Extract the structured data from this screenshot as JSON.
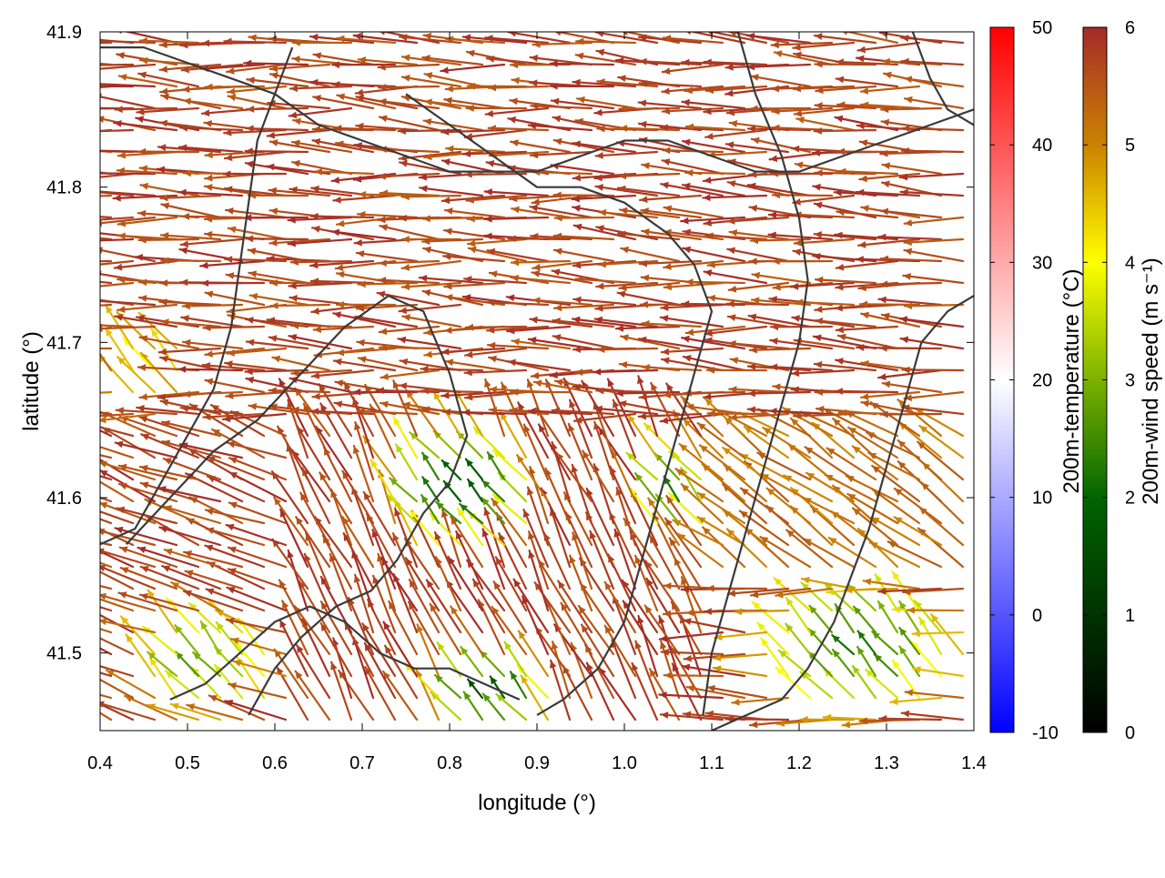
{
  "chart_data": {
    "type": "vector_field",
    "xlabel": "longitude (°)",
    "ylabel": "latitude (°)",
    "xlim": [
      0.4,
      1.4
    ],
    "ylim": [
      41.45,
      41.9
    ],
    "x_ticks": [
      "0.4",
      "0.5",
      "0.6",
      "0.7",
      "0.8",
      "0.9",
      "1.0",
      "1.1",
      "1.2",
      "1.3",
      "1.4"
    ],
    "y_ticks": [
      "41.5",
      "41.6",
      "41.7",
      "41.8",
      "41.9"
    ],
    "x_tick_values": [
      0.4,
      0.5,
      0.6,
      0.7,
      0.8,
      0.9,
      1.0,
      1.1,
      1.2,
      1.3,
      1.4
    ],
    "y_tick_values": [
      41.5,
      41.6,
      41.7,
      41.8,
      41.9
    ],
    "temperature_colorbar": {
      "label": "200m-temperature (°C)",
      "range": [
        -10,
        50
      ],
      "ticks": [
        "-10",
        "0",
        "10",
        "20",
        "30",
        "40",
        "50"
      ],
      "tick_values": [
        -10,
        0,
        10,
        20,
        30,
        40,
        50
      ],
      "colors": [
        "#0000ff",
        "#ffffff",
        "#ff0000"
      ]
    },
    "wind_colorbar": {
      "label": "200m-wind speed (m s⁻¹)",
      "range": [
        0,
        6
      ],
      "ticks": [
        "0",
        "1",
        "2",
        "3",
        "4",
        "5",
        "6"
      ],
      "tick_values": [
        0,
        1,
        2,
        3,
        4,
        5,
        6
      ],
      "colors": [
        "#000000",
        "#006400",
        "#7cb200",
        "#ffff00",
        "#cc8400",
        "#a52a2a"
      ]
    },
    "contours": [
      [
        [
          0.4,
          41.89
        ],
        [
          0.45,
          41.89
        ],
        [
          0.5,
          41.88
        ],
        [
          0.55,
          41.87
        ],
        [
          0.6,
          41.86
        ],
        [
          0.65,
          41.84
        ],
        [
          0.7,
          41.83
        ],
        [
          0.75,
          41.82
        ],
        [
          0.8,
          41.81
        ],
        [
          0.85,
          41.81
        ],
        [
          0.9,
          41.81
        ],
        [
          0.95,
          41.82
        ],
        [
          1.0,
          41.83
        ],
        [
          1.05,
          41.83
        ],
        [
          1.1,
          41.82
        ],
        [
          1.15,
          41.81
        ],
        [
          1.2,
          41.81
        ],
        [
          1.25,
          41.82
        ],
        [
          1.3,
          41.83
        ],
        [
          1.35,
          41.84
        ],
        [
          1.4,
          41.85
        ]
      ],
      [
        [
          0.62,
          41.89
        ],
        [
          0.6,
          41.86
        ],
        [
          0.58,
          41.83
        ],
        [
          0.57,
          41.79
        ],
        [
          0.56,
          41.75
        ],
        [
          0.55,
          41.71
        ],
        [
          0.53,
          41.67
        ],
        [
          0.5,
          41.64
        ],
        [
          0.47,
          41.61
        ],
        [
          0.44,
          41.58
        ],
        [
          0.4,
          41.57
        ]
      ],
      [
        [
          0.43,
          41.57
        ],
        [
          0.48,
          41.6
        ],
        [
          0.53,
          41.63
        ],
        [
          0.58,
          41.65
        ],
        [
          0.63,
          41.68
        ],
        [
          0.68,
          41.71
        ],
        [
          0.73,
          41.73
        ],
        [
          0.77,
          41.72
        ],
        [
          0.8,
          41.68
        ],
        [
          0.82,
          41.64
        ],
        [
          0.8,
          41.61
        ],
        [
          0.77,
          41.59
        ],
        [
          0.74,
          41.56
        ],
        [
          0.71,
          41.54
        ],
        [
          0.67,
          41.53
        ],
        [
          0.63,
          41.51
        ],
        [
          0.6,
          41.49
        ],
        [
          0.57,
          41.46
        ]
      ],
      [
        [
          0.75,
          41.86
        ],
        [
          0.8,
          41.84
        ],
        [
          0.85,
          41.82
        ],
        [
          0.9,
          41.8
        ],
        [
          0.95,
          41.8
        ],
        [
          1.0,
          41.79
        ],
        [
          1.05,
          41.77
        ],
        [
          1.08,
          41.75
        ],
        [
          1.1,
          41.72
        ],
        [
          1.08,
          41.68
        ],
        [
          1.06,
          41.64
        ],
        [
          1.04,
          41.6
        ],
        [
          1.02,
          41.56
        ],
        [
          1.0,
          41.52
        ],
        [
          0.97,
          41.49
        ],
        [
          0.93,
          41.47
        ],
        [
          0.9,
          41.46
        ]
      ],
      [
        [
          1.13,
          41.9
        ],
        [
          1.15,
          41.86
        ],
        [
          1.18,
          41.82
        ],
        [
          1.2,
          41.78
        ],
        [
          1.21,
          41.74
        ],
        [
          1.2,
          41.7
        ],
        [
          1.18,
          41.66
        ],
        [
          1.16,
          41.62
        ],
        [
          1.14,
          41.58
        ],
        [
          1.12,
          41.54
        ],
        [
          1.1,
          41.5
        ],
        [
          1.09,
          41.46
        ]
      ],
      [
        [
          1.4,
          41.73
        ],
        [
          1.37,
          41.72
        ],
        [
          1.34,
          41.7
        ],
        [
          1.32,
          41.66
        ],
        [
          1.3,
          41.62
        ],
        [
          1.28,
          41.58
        ],
        [
          1.26,
          41.55
        ],
        [
          1.24,
          41.52
        ],
        [
          1.21,
          41.49
        ],
        [
          1.18,
          41.47
        ],
        [
          1.14,
          41.46
        ],
        [
          1.1,
          41.45
        ]
      ],
      [
        [
          1.33,
          41.9
        ],
        [
          1.35,
          41.87
        ],
        [
          1.37,
          41.85
        ],
        [
          1.4,
          41.84
        ]
      ],
      [
        [
          0.48,
          41.47
        ],
        [
          0.52,
          41.48
        ],
        [
          0.56,
          41.5
        ],
        [
          0.6,
          41.52
        ],
        [
          0.64,
          41.53
        ],
        [
          0.68,
          41.52
        ],
        [
          0.72,
          41.5
        ],
        [
          0.76,
          41.49
        ],
        [
          0.8,
          41.49
        ],
        [
          0.84,
          41.48
        ],
        [
          0.88,
          41.47
        ]
      ]
    ],
    "wind_regimes": [
      {
        "lon": [
          0.4,
          1.4
        ],
        "lat": [
          41.65,
          41.9
        ],
        "u": -1.0,
        "v": 0.05,
        "speed": 6.0
      },
      {
        "lon": [
          0.4,
          0.62
        ],
        "lat": [
          41.45,
          41.65
        ],
        "u": -0.9,
        "v": 0.35,
        "speed": 6.0
      },
      {
        "lon": [
          0.62,
          1.1
        ],
        "lat": [
          41.45,
          41.65
        ],
        "u": -0.45,
        "v": 0.9,
        "speed": 6.0
      },
      {
        "lon": [
          1.1,
          1.4
        ],
        "lat": [
          41.55,
          41.65
        ],
        "u": -0.8,
        "v": 0.55,
        "speed": 5.5
      }
    ],
    "weak_wind_zones": [
      {
        "lon": 0.82,
        "lat": 41.6,
        "radius_lon": 0.1,
        "radius_lat": 0.045,
        "speed": 2.0
      },
      {
        "lon": 1.06,
        "lat": 41.6,
        "radius_lon": 0.05,
        "radius_lat": 0.035,
        "speed": 2.5
      },
      {
        "lon": 0.53,
        "lat": 41.49,
        "radius_lon": 0.09,
        "radius_lat": 0.04,
        "speed": 3.0
      },
      {
        "lon": 0.85,
        "lat": 41.47,
        "radius_lon": 0.08,
        "radius_lat": 0.03,
        "speed": 2.0
      },
      {
        "lon": 1.28,
        "lat": 41.5,
        "radius_lon": 0.14,
        "radius_lat": 0.05,
        "speed": 2.6
      },
      {
        "lon": 0.46,
        "lat": 41.68,
        "radius_lon": 0.06,
        "radius_lat": 0.03,
        "speed": 4.5
      }
    ]
  }
}
